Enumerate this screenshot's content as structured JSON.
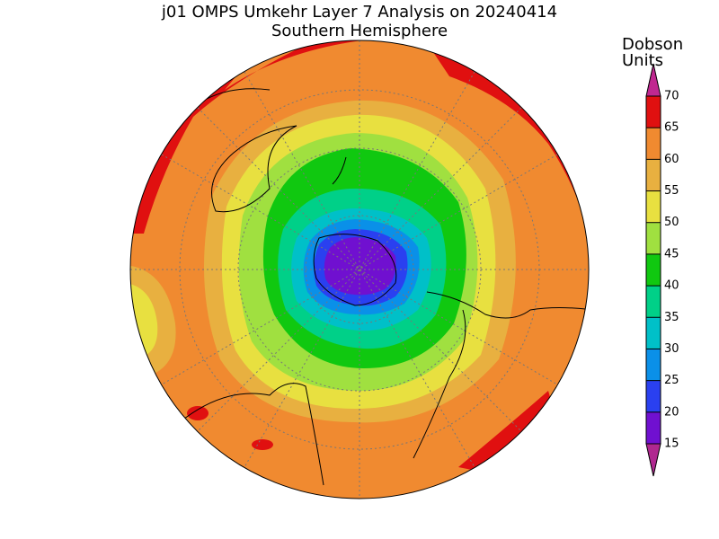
{
  "title": "j01 OMPS Umkehr Layer 7 Analysis on 20240414",
  "subtitle": "Southern Hemisphere",
  "colorbar": {
    "label_lines": [
      "Dobson",
      "Units"
    ],
    "ticks": [
      15,
      20,
      25,
      30,
      35,
      40,
      45,
      50,
      55,
      60,
      65,
      70
    ],
    "colors": [
      "#b02890",
      "#7010d0",
      "#2a40f0",
      "#0a90e8",
      "#00c0c8",
      "#00d088",
      "#10c810",
      "#a0e040",
      "#e8e040",
      "#e8b040",
      "#f08a30",
      "#e01010",
      "#c02890"
    ]
  }
}
